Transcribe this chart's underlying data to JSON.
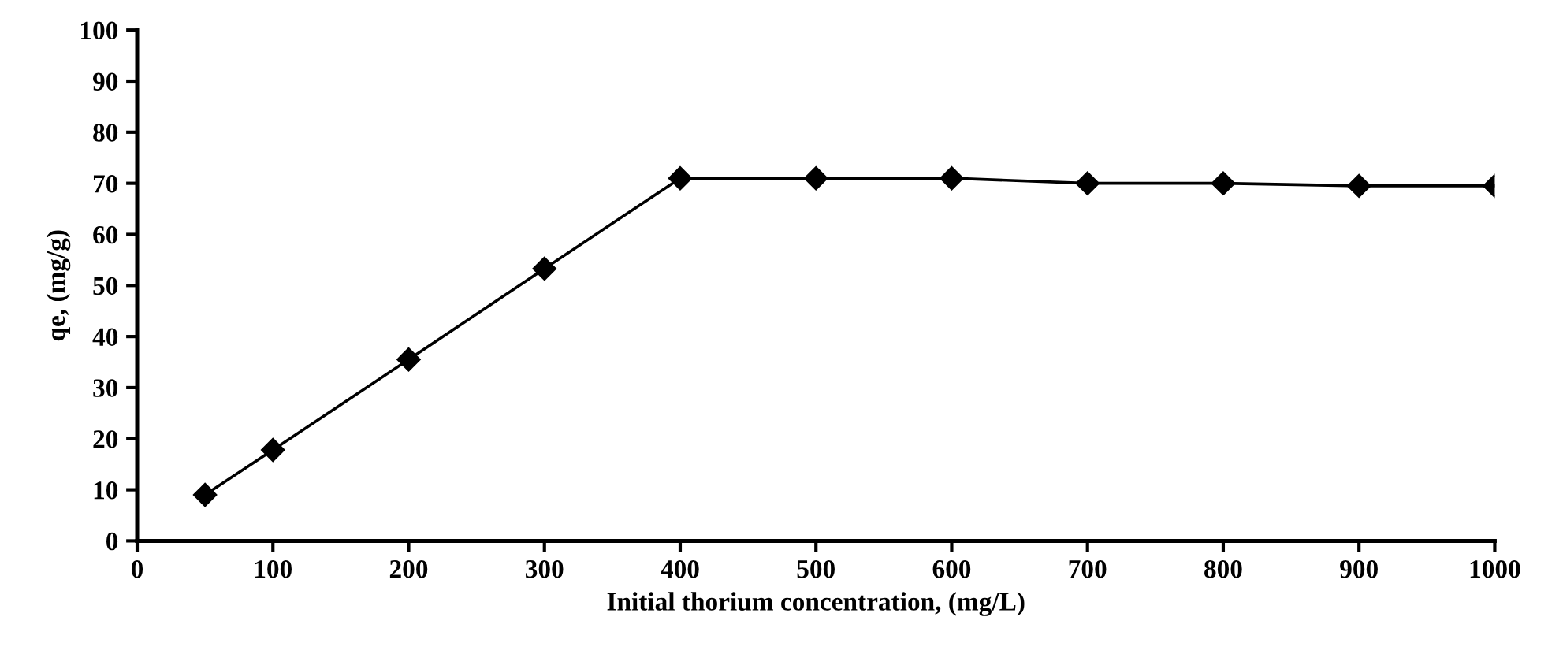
{
  "chart_data": {
    "type": "line",
    "xlabel": "Initial thorium concentration, (mg/L)",
    "ylabel": "qe, (mg/g)",
    "x": [
      50,
      100,
      200,
      300,
      400,
      500,
      600,
      700,
      800,
      900,
      1000
    ],
    "series": [
      {
        "color": "#000000",
        "values": [
          9,
          17.8,
          35.5,
          53.3,
          71,
          71,
          71,
          70,
          70,
          69.5,
          69.5
        ]
      }
    ],
    "xlim": [
      0,
      1000
    ],
    "xticks": [
      0,
      100,
      200,
      300,
      400,
      500,
      600,
      700,
      800,
      900,
      1000
    ],
    "ylim": [
      0,
      100
    ],
    "yticks": [
      0,
      10,
      20,
      30,
      40,
      50,
      60,
      70,
      80,
      90,
      100
    ],
    "grid": false,
    "legend": false,
    "marker": "diamond",
    "line_style": "solid"
  }
}
